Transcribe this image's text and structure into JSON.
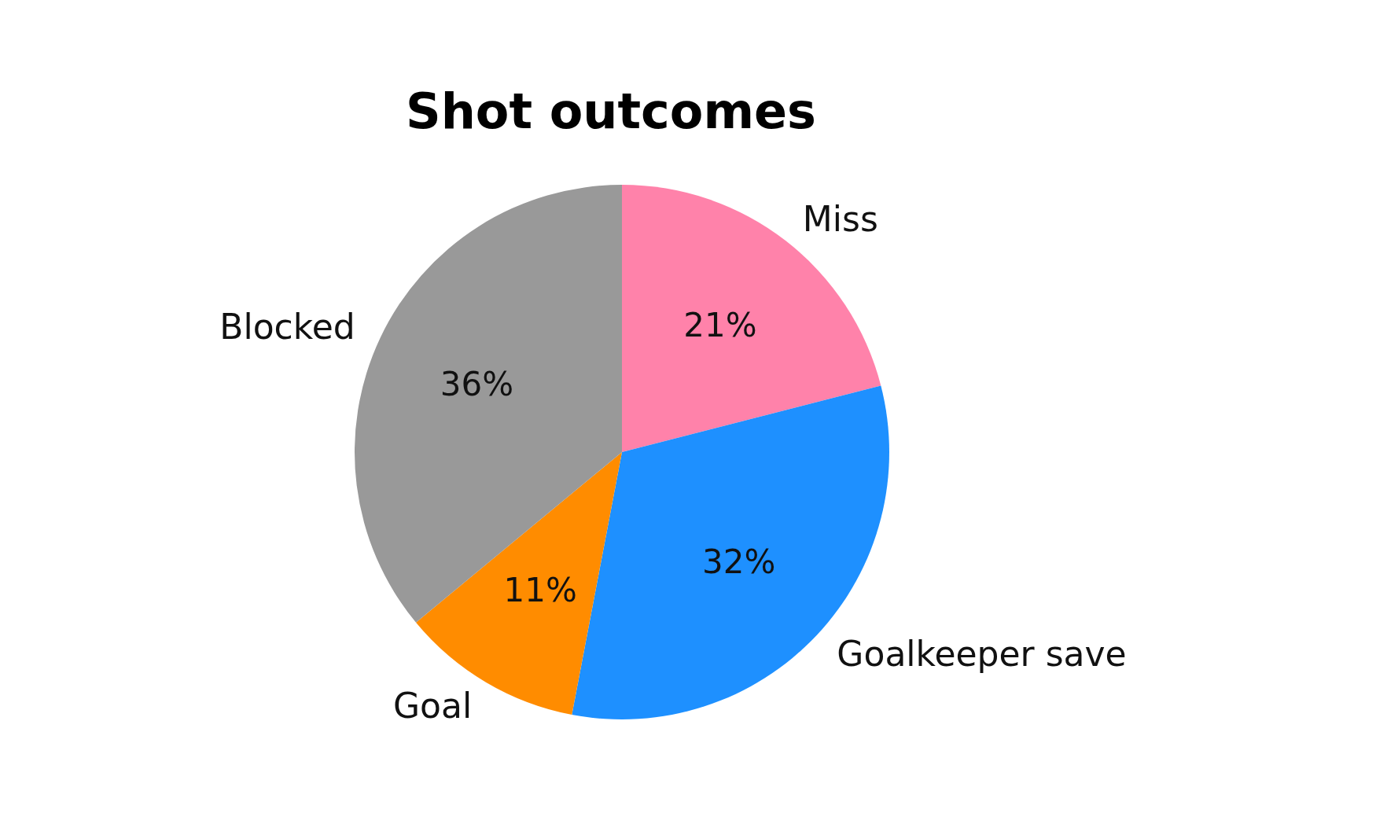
{
  "chart_data": {
    "type": "pie",
    "title": "Shot outcomes",
    "categories": [
      "Miss",
      "Goalkeeper save",
      "Goal",
      "Blocked"
    ],
    "values": [
      21,
      32,
      11,
      36
    ],
    "colors": [
      "#ff82aa",
      "#1e90ff",
      "#ff8c00",
      "#999999"
    ],
    "value_labels": [
      "21%",
      "32%",
      "11%",
      "36%"
    ]
  }
}
